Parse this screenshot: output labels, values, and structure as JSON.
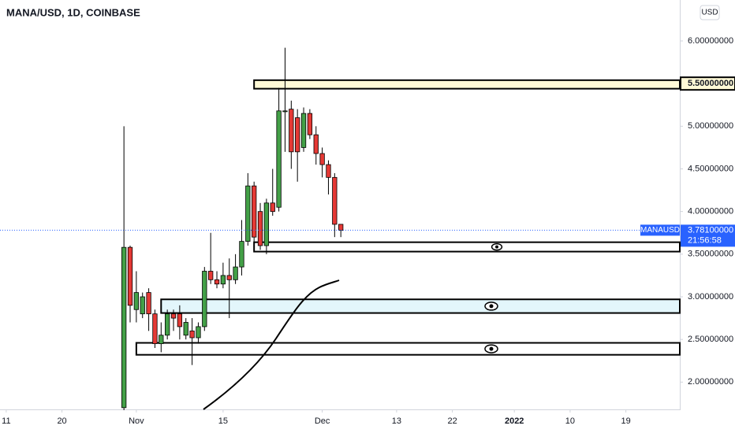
{
  "chart_data": {
    "type": "candlestick",
    "title": "MANA/USD, 1D, COINBASE",
    "currency": "USD",
    "x": [
      -2,
      -1,
      0,
      1,
      2,
      3,
      4,
      5,
      6,
      7,
      8,
      9,
      10,
      11,
      12,
      13,
      14,
      15,
      16,
      17,
      18,
      19,
      20,
      21,
      22,
      23,
      24,
      25,
      26,
      27,
      28,
      29,
      30,
      31,
      32,
      33
    ],
    "open": [
      1.7,
      3.58,
      2.85,
      2.8,
      3.05,
      2.8,
      2.45,
      2.55,
      2.8,
      2.8,
      2.55,
      2.6,
      2.52,
      2.65,
      3.3,
      3.2,
      3.15,
      3.25,
      3.2,
      3.35,
      3.65,
      4.3,
      4.0,
      3.6,
      4.1,
      4.05,
      5.17,
      5.2,
      5.1,
      4.75,
      5.15,
      4.9,
      4.68,
      4.55,
      4.4,
      3.85
    ],
    "high": [
      5.0,
      3.6,
      3.3,
      3.05,
      3.1,
      2.85,
      2.7,
      2.85,
      2.85,
      2.9,
      2.75,
      2.75,
      2.7,
      3.35,
      3.75,
      3.3,
      3.4,
      3.45,
      3.5,
      3.9,
      4.45,
      4.35,
      4.1,
      4.15,
      4.5,
      5.45,
      5.92,
      5.3,
      5.2,
      5.22,
      5.2,
      5.0,
      4.75,
      4.6,
      4.45,
      3.85
    ],
    "low": [
      1.65,
      2.7,
      2.7,
      2.75,
      2.6,
      2.4,
      2.35,
      2.5,
      2.6,
      2.5,
      2.5,
      2.2,
      2.45,
      2.6,
      3.15,
      3.1,
      3.1,
      2.75,
      3.15,
      3.25,
      3.6,
      3.6,
      3.55,
      3.5,
      3.95,
      4.0,
      4.7,
      4.5,
      4.35,
      4.7,
      4.85,
      4.55,
      4.4,
      4.2,
      3.7,
      3.7
    ],
    "close": [
      3.58,
      2.9,
      3.05,
      3.0,
      2.8,
      2.45,
      2.55,
      2.8,
      2.75,
      2.65,
      2.7,
      2.52,
      2.65,
      3.3,
      3.2,
      3.15,
      3.25,
      3.2,
      3.35,
      3.65,
      4.3,
      3.7,
      3.6,
      4.1,
      4.0,
      5.18,
      5.18,
      4.7,
      4.7,
      5.15,
      4.9,
      4.68,
      4.55,
      4.4,
      3.85,
      3.78
    ],
    "up_color": "#43a047",
    "down_color": "#e53935",
    "xlim": [
      -22,
      87.7
    ],
    "ylim": [
      1.68,
      6.48
    ],
    "xticks": [
      {
        "value": -21,
        "label": "11"
      },
      {
        "value": -12,
        "label": "20"
      },
      {
        "value": 0,
        "label": "Nov"
      },
      {
        "value": 14,
        "label": "15"
      },
      {
        "value": 30,
        "label": "Dec"
      },
      {
        "value": 42,
        "label": "13"
      },
      {
        "value": 51,
        "label": "22"
      },
      {
        "value": 61,
        "label": "2022"
      },
      {
        "value": 70,
        "label": "10"
      },
      {
        "value": 79,
        "label": "19"
      }
    ],
    "yticks": [
      {
        "value": 2,
        "label": "2.00000000"
      },
      {
        "value": 2.5,
        "label": "2.50000000"
      },
      {
        "value": 3,
        "label": "3.00000000"
      },
      {
        "value": 3.5,
        "label": "3.50000000"
      },
      {
        "value": 4,
        "label": "4.00000000"
      },
      {
        "value": 4.5,
        "label": "4.50000000"
      },
      {
        "value": 5,
        "label": "5.00000000"
      },
      {
        "value": 6,
        "label": "6.00000000"
      }
    ],
    "price_marker": {
      "value": 5.5,
      "label": "5.50000000"
    },
    "last_price": {
      "symbol": "MANAUSD",
      "value": 3.781,
      "label": "3.78100000",
      "countdown": "21:56:58"
    },
    "zones": [
      {
        "start": 19,
        "low": 5.44,
        "high": 5.54,
        "color": "#fff9d6"
      },
      {
        "start": 19,
        "low": 3.53,
        "high": 3.64,
        "color": "#ffffff"
      },
      {
        "start": 4,
        "low": 2.81,
        "high": 2.97,
        "color": "#e3f6fb"
      },
      {
        "start": 0,
        "low": 2.32,
        "high": 2.46,
        "color": "#ffffff"
      }
    ]
  }
}
